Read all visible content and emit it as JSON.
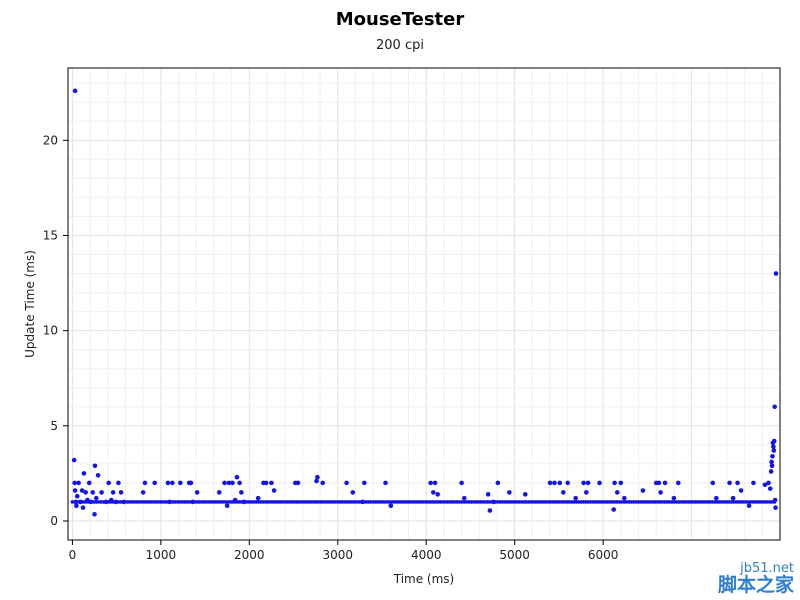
{
  "chart_data": {
    "type": "scatter",
    "title": "MouseTester",
    "subtitle": "200 cpi",
    "xlabel": "Time (ms)",
    "ylabel": "Update Time (ms)",
    "xlim": [
      -50,
      8000
    ],
    "ylim": [
      -1,
      23.8
    ],
    "xticks": [
      "0",
      "1000",
      "2000",
      "3000",
      "4000",
      "5000",
      "6000"
    ],
    "yticks": [
      "0",
      "5",
      "10",
      "15",
      "20"
    ],
    "grid": true,
    "series_color": "#1414e6",
    "baseline": 1.0,
    "points": [
      [
        30,
        22.6
      ],
      [
        20,
        3.2
      ],
      [
        25,
        2.0
      ],
      [
        30,
        1.6
      ],
      [
        40,
        1.0
      ],
      [
        45,
        0.8
      ],
      [
        55,
        1.3
      ],
      [
        70,
        2.0
      ],
      [
        90,
        1.0
      ],
      [
        110,
        1.6
      ],
      [
        120,
        0.7
      ],
      [
        130,
        2.5
      ],
      [
        150,
        1.5
      ],
      [
        170,
        1.1
      ],
      [
        190,
        2.0
      ],
      [
        210,
        1.0
      ],
      [
        230,
        1.5
      ],
      [
        250,
        0.35
      ],
      [
        255,
        2.9
      ],
      [
        270,
        1.2
      ],
      [
        290,
        2.4
      ],
      [
        330,
        1.5
      ],
      [
        380,
        1.0
      ],
      [
        410,
        2.0
      ],
      [
        440,
        1.1
      ],
      [
        460,
        1.5
      ],
      [
        490,
        1.0
      ],
      [
        520,
        2.0
      ],
      [
        550,
        1.5
      ],
      [
        580,
        1.0
      ],
      [
        800,
        1.5
      ],
      [
        820,
        2.0
      ],
      [
        930,
        2.0
      ],
      [
        1080,
        2.0
      ],
      [
        1100,
        1.0
      ],
      [
        1130,
        2.0
      ],
      [
        1220,
        2.0
      ],
      [
        1320,
        2.0
      ],
      [
        1340,
        2.0
      ],
      [
        1360,
        1.0
      ],
      [
        1410,
        1.5
      ],
      [
        1660,
        1.5
      ],
      [
        1720,
        2.0
      ],
      [
        1750,
        0.8
      ],
      [
        1770,
        2.0
      ],
      [
        1810,
        2.0
      ],
      [
        1840,
        1.1
      ],
      [
        1860,
        2.3
      ],
      [
        1890,
        2.0
      ],
      [
        1910,
        1.5
      ],
      [
        1940,
        1.0
      ],
      [
        2100,
        1.2
      ],
      [
        2160,
        2.0
      ],
      [
        2190,
        2.0
      ],
      [
        2250,
        2.0
      ],
      [
        2280,
        1.6
      ],
      [
        2520,
        2.0
      ],
      [
        2550,
        2.0
      ],
      [
        2760,
        2.1
      ],
      [
        2770,
        2.3
      ],
      [
        2830,
        2.0
      ],
      [
        3100,
        2.0
      ],
      [
        3170,
        1.5
      ],
      [
        3280,
        1.0
      ],
      [
        3300,
        2.0
      ],
      [
        3540,
        2.0
      ],
      [
        3600,
        0.8
      ],
      [
        4050,
        2.0
      ],
      [
        4080,
        1.5
      ],
      [
        4100,
        2.0
      ],
      [
        4130,
        1.4
      ],
      [
        4400,
        2.0
      ],
      [
        4430,
        1.2
      ],
      [
        4700,
        1.4
      ],
      [
        4720,
        0.55
      ],
      [
        4760,
        1.0
      ],
      [
        4810,
        2.0
      ],
      [
        4940,
        1.5
      ],
      [
        5120,
        1.4
      ],
      [
        5400,
        2.0
      ],
      [
        5450,
        2.0
      ],
      [
        5510,
        2.0
      ],
      [
        5550,
        1.5
      ],
      [
        5600,
        2.0
      ],
      [
        5690,
        1.2
      ],
      [
        5780,
        2.0
      ],
      [
        5810,
        1.5
      ],
      [
        5830,
        2.0
      ],
      [
        5960,
        2.0
      ],
      [
        6120,
        0.6
      ],
      [
        6130,
        2.0
      ],
      [
        6160,
        1.5
      ],
      [
        6200,
        2.0
      ],
      [
        6240,
        1.2
      ],
      [
        6450,
        1.6
      ],
      [
        6600,
        2.0
      ],
      [
        6630,
        2.0
      ],
      [
        6650,
        1.5
      ],
      [
        6700,
        2.0
      ],
      [
        6800,
        1.2
      ],
      [
        6850,
        2.0
      ],
      [
        7240,
        2.0
      ],
      [
        7280,
        1.2
      ],
      [
        7430,
        2.0
      ],
      [
        7470,
        1.2
      ],
      [
        7520,
        2.0
      ],
      [
        7560,
        1.6
      ],
      [
        7650,
        0.8
      ],
      [
        7700,
        2.0
      ],
      [
        7830,
        1.9
      ],
      [
        7870,
        2.0
      ],
      [
        7890,
        1.7
      ],
      [
        7900,
        2.6
      ],
      [
        7905,
        3.1
      ],
      [
        7910,
        2.9
      ],
      [
        7915,
        3.4
      ],
      [
        7920,
        4.1
      ],
      [
        7925,
        3.9
      ],
      [
        7930,
        3.7
      ],
      [
        7935,
        4.2
      ],
      [
        7940,
        6.0
      ],
      [
        7945,
        1.1
      ],
      [
        7950,
        0.7
      ],
      [
        7955,
        13.0
      ]
    ]
  },
  "watermark": {
    "line1": "jb51.net",
    "line2": "脚本之家"
  }
}
